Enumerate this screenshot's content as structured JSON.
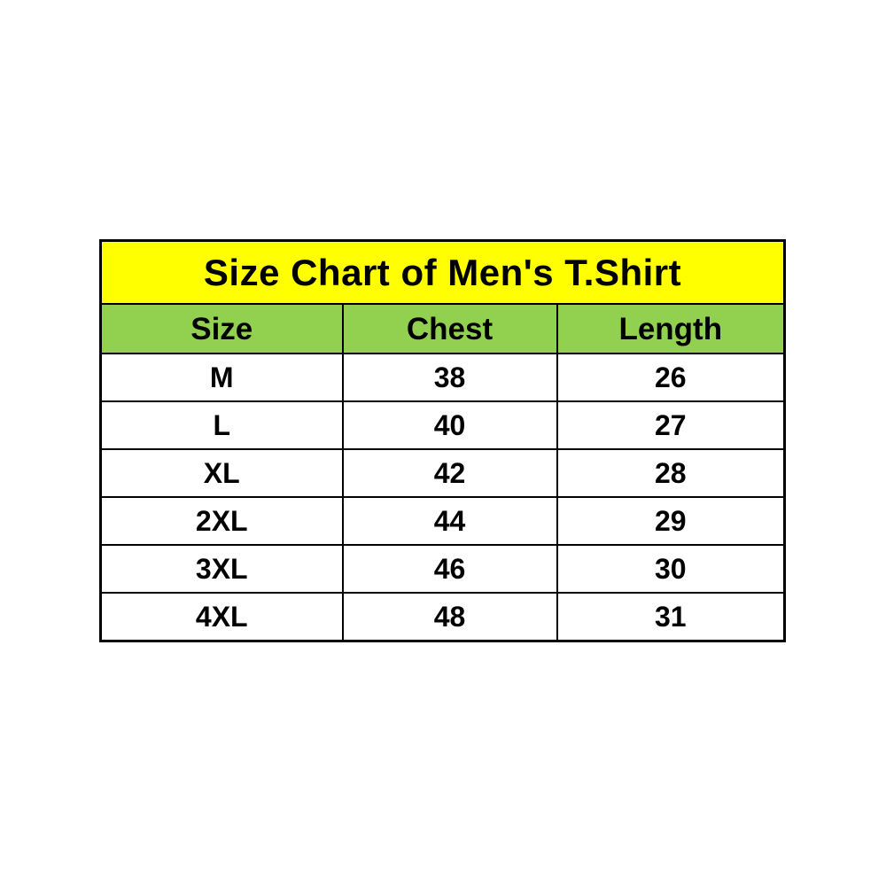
{
  "chart_data": {
    "type": "table",
    "title": "Size Chart of Men's T.Shirt",
    "columns": [
      "Size",
      "Chest",
      "Length"
    ],
    "rows": [
      [
        "M",
        "38",
        "26"
      ],
      [
        "L",
        "40",
        "27"
      ],
      [
        "XL",
        "42",
        "28"
      ],
      [
        "2XL",
        "44",
        "29"
      ],
      [
        "3XL",
        "46",
        "30"
      ],
      [
        "4XL",
        "48",
        "31"
      ]
    ]
  },
  "colors": {
    "title_background": "#ffff00",
    "header_background": "#92d050",
    "border": "#000000",
    "text": "#000000",
    "page_background": "#ffffff"
  }
}
